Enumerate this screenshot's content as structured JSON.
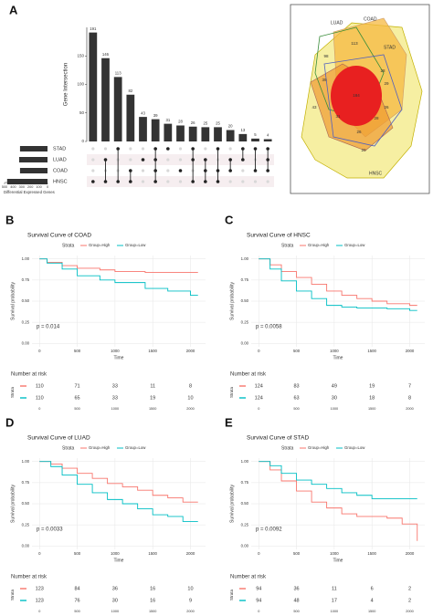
{
  "chart_data": [
    {
      "type": "bar",
      "panel_label": "A",
      "ylabel": "Gene Intersection",
      "values": [
        191,
        146,
        113,
        82,
        43,
        39,
        31,
        28,
        26,
        25,
        25,
        20,
        13,
        5,
        4
      ],
      "sets": [
        "STAD",
        "LUAD",
        "COAD",
        "HNSC"
      ],
      "membership": [
        [
          3
        ],
        [
          1,
          3
        ],
        [
          0,
          3
        ],
        [
          2,
          3
        ],
        [
          1
        ],
        [
          0,
          1,
          2,
          3
        ],
        [
          0
        ],
        [
          2
        ],
        [
          0,
          1,
          3
        ],
        [
          1,
          2,
          3
        ],
        [
          0,
          2,
          3
        ],
        [
          1,
          2
        ],
        [
          0,
          1
        ],
        [
          0,
          2
        ],
        [
          0,
          1,
          2
        ]
      ],
      "color": "#333333",
      "ylim": [
        0,
        200
      ],
      "yticks": [
        0,
        50,
        100,
        150
      ]
    },
    {
      "type": "barh",
      "xlabel": "Differential Expressed Genes",
      "values": [
        320,
        330,
        320,
        470
      ],
      "color": "#333333",
      "xlim": [
        500,
        0
      ],
      "xticks": [
        500,
        400,
        300,
        200,
        100,
        0
      ]
    },
    {
      "type": "venn",
      "sets": [
        "LUAD",
        "COAD",
        "STAD",
        "HNSC"
      ],
      "values": [
        98,
        113,
        28,
        39,
        29,
        43,
        184,
        26,
        31,
        28,
        26,
        20
      ]
    },
    {
      "type": "line",
      "step": true,
      "panel_label": "B",
      "title": "Survival Curve of COAD",
      "legend_title": "Strata",
      "x": [
        0,
        100,
        300,
        500,
        800,
        1000,
        1400,
        1700,
        2000,
        2100
      ],
      "series": [
        {
          "name": "Group=High",
          "color": "#F8766D",
          "values": [
            1,
            0.96,
            0.92,
            0.89,
            0.87,
            0.85,
            0.84,
            0.84,
            0.84,
            0.84
          ]
        },
        {
          "name": "Group=Low",
          "color": "#00BFC4",
          "values": [
            1,
            0.95,
            0.88,
            0.8,
            0.75,
            0.72,
            0.65,
            0.62,
            0.57,
            0.57
          ]
        }
      ],
      "xlabel": "Time",
      "ylabel": "Survival probability",
      "annotation": "p = 0.014",
      "xlim": [
        -100,
        2200
      ],
      "xticks": [
        0,
        500,
        1000,
        1500,
        2000
      ],
      "ylim": [
        -0.04,
        1.04
      ],
      "yticks": [
        {
          "value": 0,
          "label": "0.00"
        },
        0.25,
        {
          "value": 0.5,
          "label": "0.50"
        },
        0.75,
        {
          "value": 1,
          "label": "1.00"
        }
      ],
      "grid": true,
      "risk_table": {
        "title": "Number at risk",
        "ylabel": "Strata",
        "rows": [
          [
            110,
            71,
            33,
            11,
            8
          ],
          [
            110,
            65,
            33,
            19,
            10
          ]
        ]
      }
    },
    {
      "type": "line",
      "step": true,
      "panel_label": "C",
      "title": "Survival Curve of HNSC",
      "legend_title": "Strata",
      "x": [
        0,
        150,
        300,
        500,
        700,
        900,
        1100,
        1300,
        1500,
        1700,
        2000,
        2100
      ],
      "series": [
        {
          "name": "Group=High",
          "color": "#F8766D",
          "values": [
            1,
            0.93,
            0.85,
            0.78,
            0.7,
            0.62,
            0.57,
            0.53,
            0.5,
            0.47,
            0.45,
            0.45
          ]
        },
        {
          "name": "Group=Low",
          "color": "#00BFC4",
          "values": [
            1,
            0.88,
            0.74,
            0.62,
            0.53,
            0.45,
            0.43,
            0.42,
            0.42,
            0.41,
            0.39,
            0.39
          ]
        }
      ],
      "xlabel": "Time",
      "ylabel": "Survival probability",
      "annotation": "p = 0.0058",
      "xlim": [
        -100,
        2200
      ],
      "xticks": [
        0,
        500,
        1000,
        1500,
        2000
      ],
      "ylim": [
        -0.04,
        1.04
      ],
      "yticks": [
        {
          "value": 0,
          "label": "0.00"
        },
        0.25,
        {
          "value": 0.5,
          "label": "0.50"
        },
        0.75,
        {
          "value": 1,
          "label": "1.00"
        }
      ],
      "grid": true,
      "risk_table": {
        "title": "Number at risk",
        "ylabel": "Strata",
        "rows": [
          [
            124,
            83,
            49,
            19,
            7
          ],
          [
            124,
            63,
            30,
            18,
            8
          ]
        ]
      }
    },
    {
      "type": "line",
      "step": true,
      "panel_label": "D",
      "title": "Survival Curve of LUAD",
      "legend_title": "Strata",
      "x": [
        0,
        150,
        300,
        500,
        700,
        900,
        1100,
        1300,
        1500,
        1700,
        1900,
        2100
      ],
      "series": [
        {
          "name": "Group=High",
          "color": "#F8766D",
          "values": [
            1,
            0.97,
            0.92,
            0.86,
            0.8,
            0.74,
            0.7,
            0.66,
            0.6,
            0.57,
            0.52,
            0.52
          ]
        },
        {
          "name": "Group=Low",
          "color": "#00BFC4",
          "values": [
            1,
            0.94,
            0.84,
            0.73,
            0.63,
            0.55,
            0.5,
            0.44,
            0.37,
            0.35,
            0.29,
            0.29
          ]
        }
      ],
      "xlabel": "Time",
      "ylabel": "Survival probability",
      "annotation": "p = 0.0033",
      "xlim": [
        -100,
        2200
      ],
      "xticks": [
        0,
        500,
        1000,
        1500,
        2000
      ],
      "ylim": [
        -0.04,
        1.04
      ],
      "yticks": [
        {
          "value": 0,
          "label": "0.00"
        },
        0.25,
        {
          "value": 0.5,
          "label": "0.50"
        },
        0.75,
        {
          "value": 1,
          "label": "1.00"
        }
      ],
      "grid": true,
      "risk_table": {
        "title": "Number at risk",
        "ylabel": "Strata",
        "rows": [
          [
            123,
            84,
            36,
            16,
            10
          ],
          [
            123,
            76,
            30,
            16,
            9
          ]
        ]
      }
    },
    {
      "type": "line",
      "step": true,
      "panel_label": "E",
      "title": "Survival Curve of STAD",
      "legend_title": "Strata",
      "x": [
        0,
        150,
        300,
        500,
        700,
        900,
        1100,
        1300,
        1500,
        1700,
        1900,
        2100
      ],
      "series": [
        {
          "name": "Group=High",
          "color": "#F8766D",
          "values": [
            1,
            0.9,
            0.77,
            0.65,
            0.52,
            0.45,
            0.38,
            0.35,
            0.35,
            0.33,
            0.26,
            0.06
          ]
        },
        {
          "name": "Group=Low",
          "color": "#00BFC4",
          "values": [
            1,
            0.95,
            0.86,
            0.78,
            0.73,
            0.68,
            0.63,
            0.6,
            0.56,
            0.56,
            0.56,
            0.56
          ]
        }
      ],
      "xlabel": "Time",
      "ylabel": "Survival probability",
      "annotation": "p = 0.0092",
      "xlim": [
        -100,
        2200
      ],
      "xticks": [
        0,
        500,
        1000,
        1500,
        2000
      ],
      "ylim": [
        -0.04,
        1.04
      ],
      "yticks": [
        {
          "value": 0,
          "label": "0.00"
        },
        0.25,
        {
          "value": 0.5,
          "label": "0.50"
        },
        0.75,
        {
          "value": 1,
          "label": "1.00"
        }
      ],
      "grid": true,
      "risk_table": {
        "title": "Number at risk",
        "ylabel": "Strata",
        "rows": [
          [
            94,
            36,
            11,
            6,
            2
          ],
          [
            94,
            48,
            17,
            4,
            2
          ]
        ]
      }
    }
  ]
}
